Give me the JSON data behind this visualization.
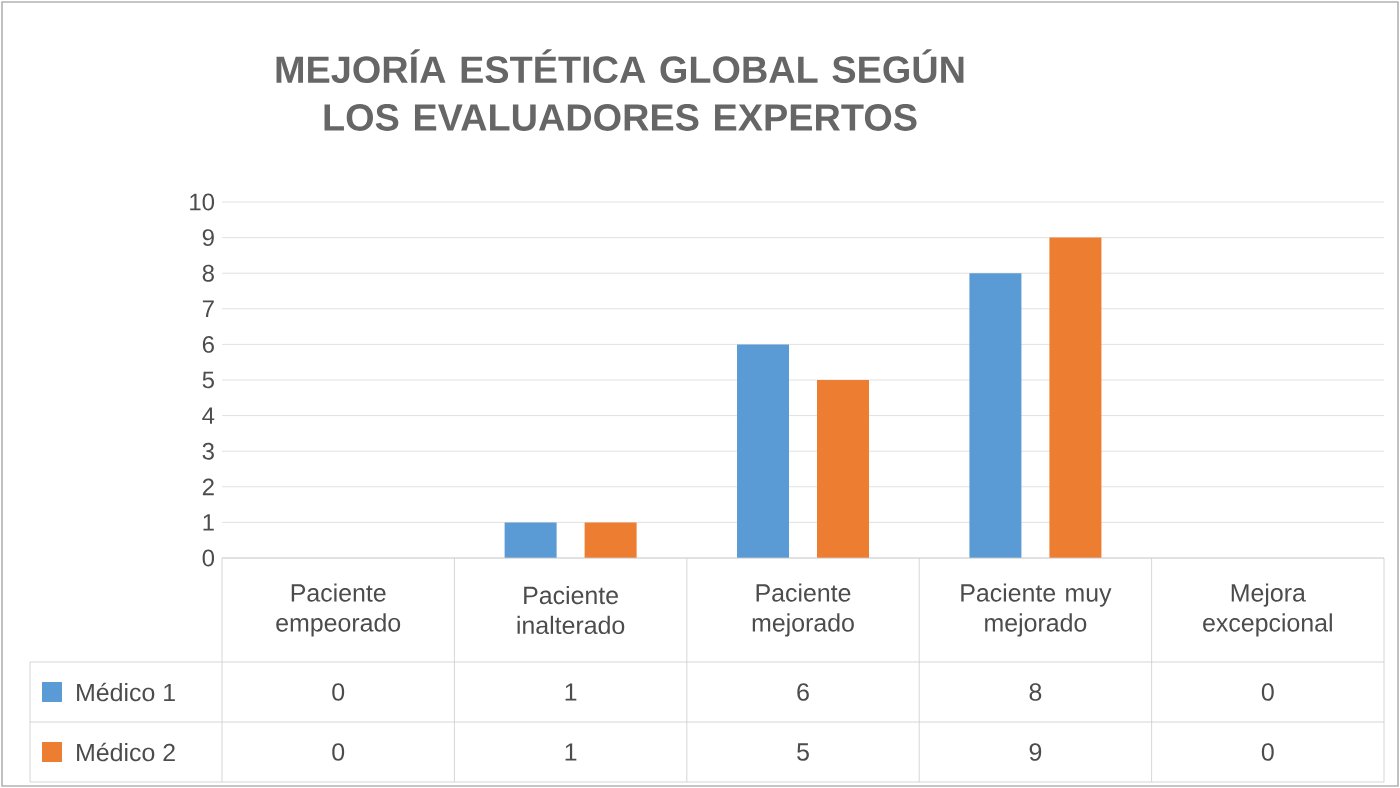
{
  "chart_data": {
    "type": "bar",
    "title": "MEJORÍA ESTÉTICA GLOBAL SEGÚN LOS EVALUADORES EXPERTOS",
    "categories": [
      "Paciente empeorado",
      "Paciente inalterado",
      "Paciente mejorado",
      "Paciente muy mejorado",
      "Mejora excepcional"
    ],
    "series": [
      {
        "name": "Médico 1",
        "color": "#5b9bd5",
        "values": [
          0,
          1,
          6,
          8,
          0
        ]
      },
      {
        "name": "Médico 2",
        "color": "#ed7d31",
        "values": [
          0,
          1,
          5,
          9,
          0
        ]
      }
    ],
    "ylim": [
      0,
      10
    ],
    "yticks": [
      0,
      1,
      2,
      3,
      4,
      5,
      6,
      7,
      8,
      9,
      10
    ],
    "grid": "y",
    "legend": "bottom",
    "data_labels": true
  }
}
